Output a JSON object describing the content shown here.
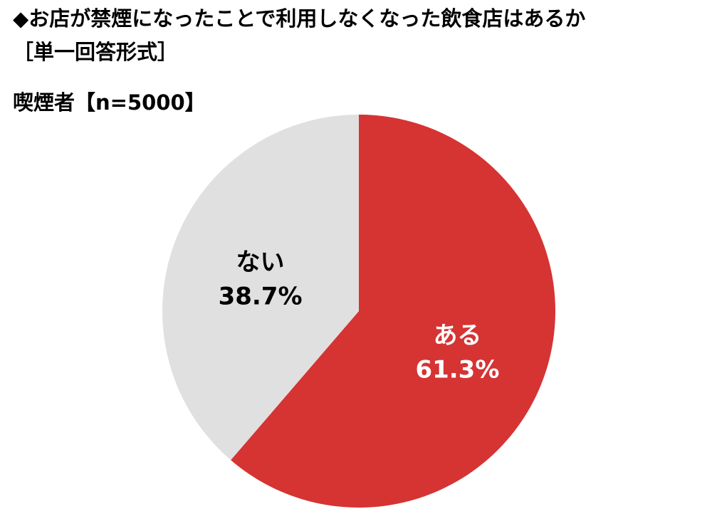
{
  "chart_data": {
    "type": "pie",
    "title": "◆お店が禁煙になったことで利用しなくなった飲食店はあるか",
    "subtitle": "［単一回答形式］",
    "sample_label": "喫煙者【n=5000】",
    "slices": [
      {
        "name": "ある",
        "value": 61.3,
        "value_label": "61.3%",
        "color": "#d63333",
        "text_color": "#ffffff"
      },
      {
        "name": "ない",
        "value": 38.7,
        "value_label": "38.7%",
        "color": "#e0e0e0",
        "text_color": "#000000"
      }
    ],
    "start_angle": "12 o'clock",
    "direction": "clockwise",
    "legend": "none"
  }
}
